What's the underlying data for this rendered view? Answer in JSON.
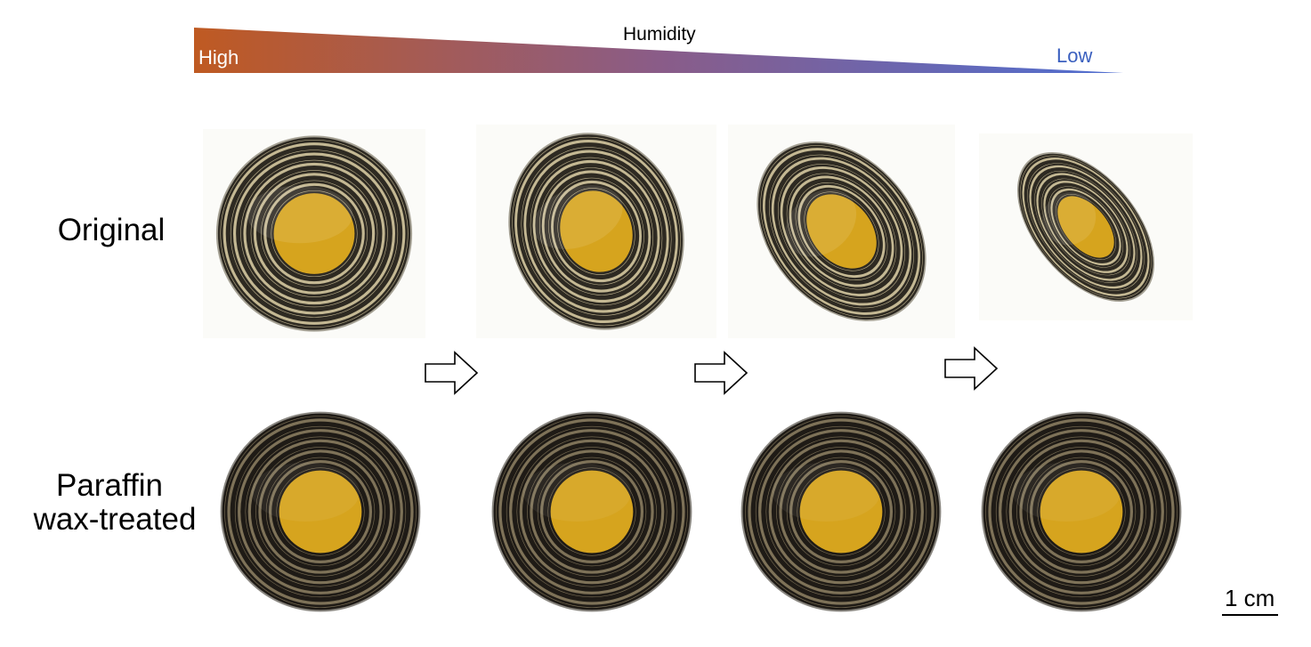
{
  "gradient": {
    "title": "Humidity",
    "left_label": "High",
    "right_label": "Low",
    "high_color": "#bf5a22",
    "mid_color": "#8a5c88",
    "low_color": "#4f6fd2"
  },
  "rows": {
    "original": "Original",
    "treated_line1": "Paraffin",
    "treated_line2": "wax-treated"
  },
  "photos": {
    "stripe_color": "#2e2a22",
    "band_color": "#c4b893",
    "center_color": "#d6a41e",
    "treated_stripe_color": "#1f1b16",
    "treated_band_color": "#7e7258",
    "original_curl_stages": [
      0,
      0.33,
      0.66,
      1.0
    ],
    "treated_curl_stages": [
      0,
      0,
      0,
      0
    ]
  },
  "scale_bar": {
    "label": "1 cm"
  }
}
